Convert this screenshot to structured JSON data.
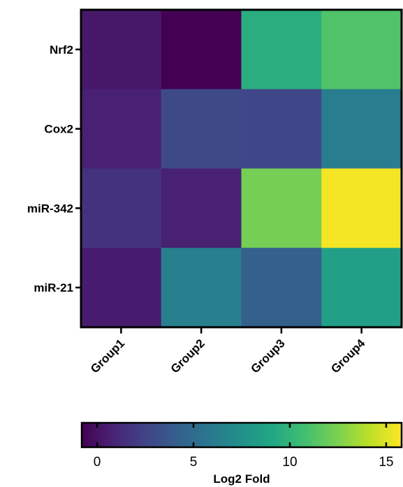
{
  "chart_data": {
    "type": "heatmap",
    "rows": [
      "Nrf2",
      "Cox2",
      "miR-342",
      "miR-21"
    ],
    "columns": [
      "Group1",
      "Group2",
      "Group3",
      "Group4"
    ],
    "values": [
      [
        0.3,
        -0.8,
        9.6,
        11.2
      ],
      [
        0.7,
        2.9,
        2.7,
        6.2
      ],
      [
        1.6,
        0.7,
        12.3,
        15.6
      ],
      [
        0.5,
        6.3,
        4.2,
        8.6
      ]
    ],
    "colorbar": {
      "min": -0.8,
      "max": 15.8,
      "ticks": [
        0,
        5,
        10,
        15
      ],
      "title": "Log2 Fold",
      "colormap": "viridis"
    }
  }
}
